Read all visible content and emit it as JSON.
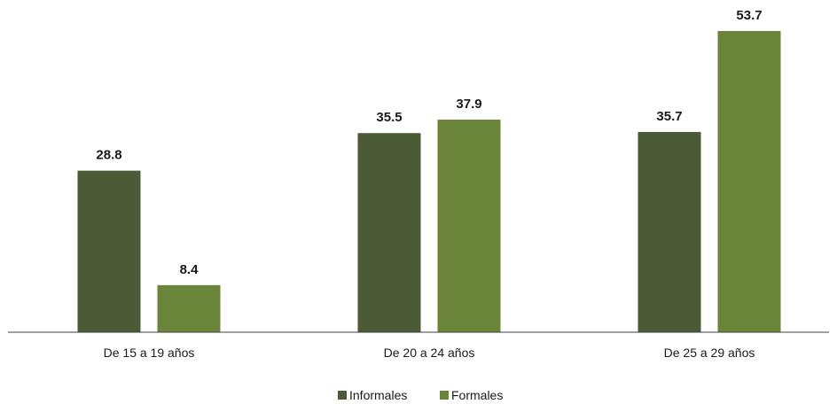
{
  "chart_data": {
    "type": "bar",
    "categories": [
      "De 15 a 19 años",
      "De 20 a 24 años",
      "De 25 a 29 años"
    ],
    "series": [
      {
        "name": "Informales",
        "color": "#4b5b36",
        "values": [
          28.8,
          35.5,
          35.7
        ]
      },
      {
        "name": "Formales",
        "color": "#6a853a",
        "values": [
          8.4,
          37.9,
          53.7
        ]
      }
    ],
    "ylim": [
      0,
      60
    ],
    "grid": false,
    "legend_position": "bottom-center",
    "axis_line_color": "#404040"
  }
}
